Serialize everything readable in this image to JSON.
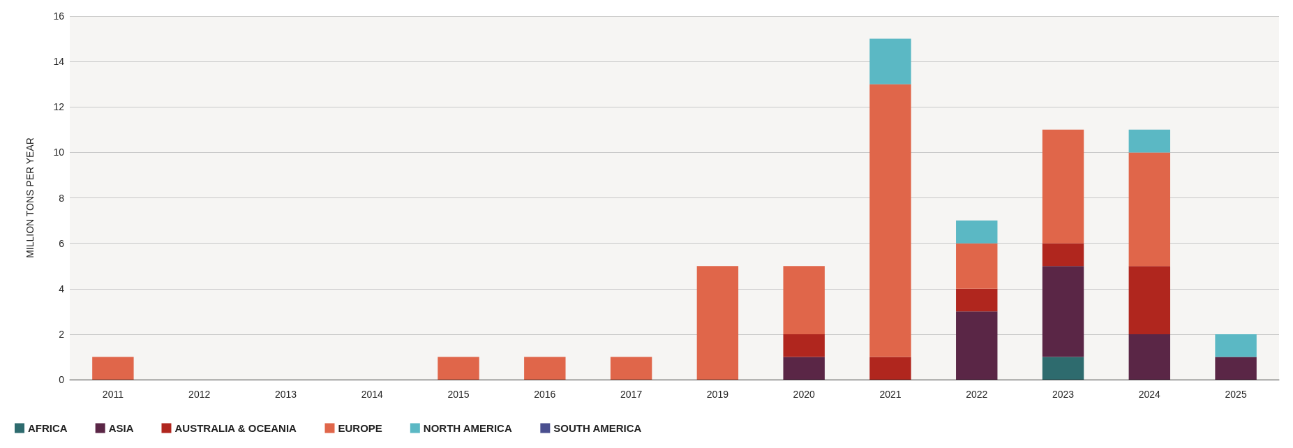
{
  "chart_data": {
    "type": "bar",
    "stacked": true,
    "ylabel": "MILLION TONS PER YEAR",
    "categories": [
      "2011",
      "2012",
      "2013",
      "2014",
      "2015",
      "2016",
      "2017",
      "2019",
      "2020",
      "2021",
      "2022",
      "2023",
      "2024",
      "2025"
    ],
    "series": [
      {
        "name": "AFRICA",
        "color": "#2e6b6e",
        "values": [
          null,
          null,
          null,
          null,
          null,
          null,
          null,
          null,
          null,
          null,
          null,
          1,
          null,
          null
        ]
      },
      {
        "name": "ASIA",
        "color": "#5a2646",
        "values": [
          null,
          null,
          null,
          null,
          null,
          null,
          null,
          null,
          1,
          null,
          3,
          4,
          2,
          1
        ]
      },
      {
        "name": "AUSTRALIA & OCEANIA",
        "color": "#b0261e",
        "values": [
          null,
          null,
          null,
          null,
          null,
          null,
          null,
          null,
          1,
          1,
          1,
          1,
          3,
          null
        ]
      },
      {
        "name": "EUROPE",
        "color": "#e0664a",
        "values": [
          1,
          null,
          null,
          null,
          1,
          1,
          1,
          5,
          3,
          12,
          2,
          5,
          5,
          null
        ]
      },
      {
        "name": "NORTH AMERICA",
        "color": "#5bb8c4",
        "values": [
          null,
          null,
          null,
          null,
          null,
          null,
          null,
          null,
          null,
          2,
          1,
          null,
          1,
          1
        ]
      },
      {
        "name": "SOUTH AMERICA",
        "color": "#4a4f8f",
        "values": [
          null,
          null,
          null,
          null,
          null,
          null,
          null,
          null,
          null,
          null,
          null,
          null,
          null,
          null
        ]
      }
    ],
    "ylim": [
      0,
      16
    ],
    "yticks": [
      0,
      2,
      4,
      6,
      8,
      10,
      12,
      14,
      16
    ],
    "grid": "y",
    "legend": "bottom left"
  }
}
